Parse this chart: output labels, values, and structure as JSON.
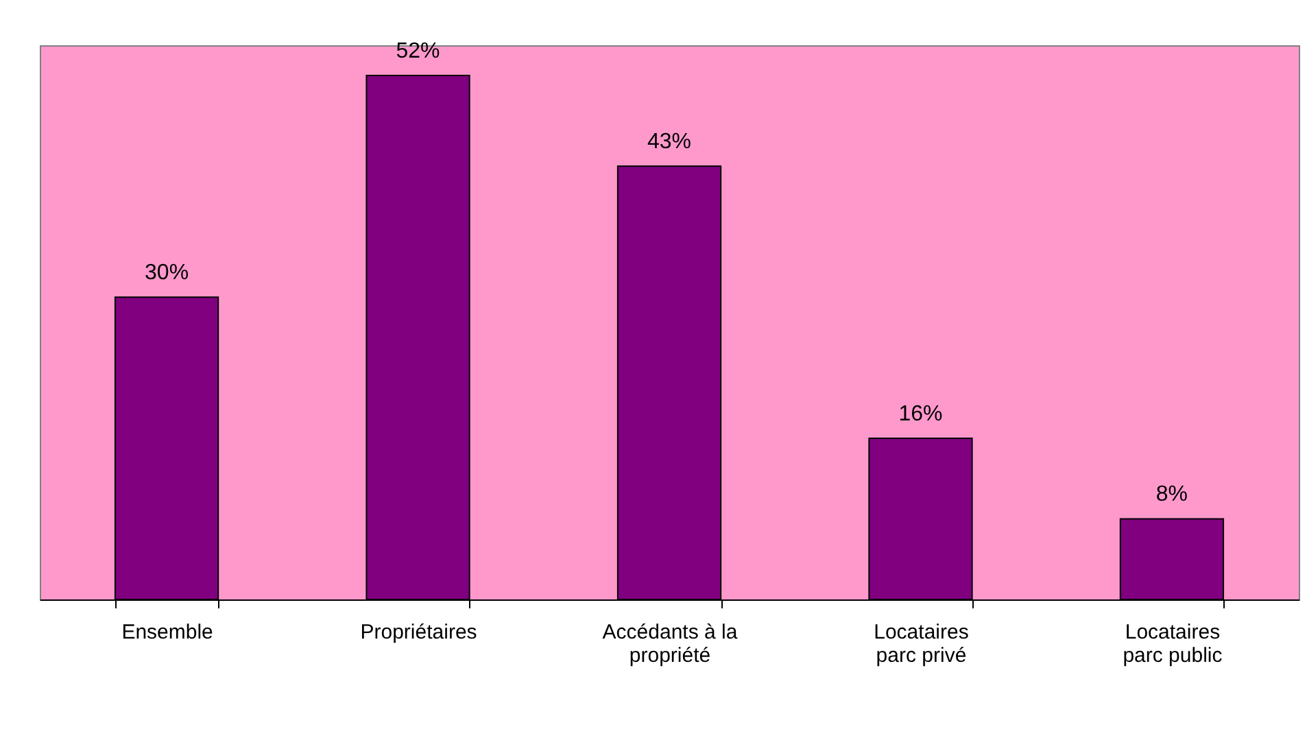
{
  "chart_data": {
    "type": "bar",
    "categories": [
      "Ensemble",
      "Propriétaires",
      "Accédants à la propriété",
      "Locataires parc privé",
      "Locataires parc public"
    ],
    "series": [
      {
        "color": "#800080",
        "values": [
          30,
          52,
          43,
          16,
          8
        ],
        "value_labels": [
          "30%",
          "52%",
          "43%",
          "16%",
          "8%"
        ]
      }
    ],
    "grid": false
  }
}
